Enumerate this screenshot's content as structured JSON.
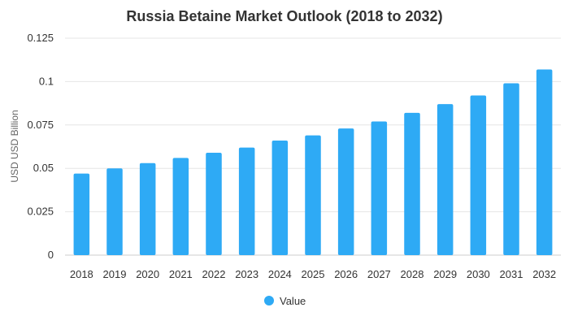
{
  "chart_data": {
    "type": "bar",
    "title": "Russia Betaine Market Outlook (2018 to 2032)",
    "xlabel": "",
    "ylabel": "USD USD Billion",
    "categories": [
      "2018",
      "2019",
      "2020",
      "2021",
      "2022",
      "2023",
      "2024",
      "2025",
      "2026",
      "2027",
      "2028",
      "2029",
      "2030",
      "2031",
      "2032"
    ],
    "series": [
      {
        "name": "Value",
        "color": "#2eaaf5",
        "values": [
          0.047,
          0.05,
          0.053,
          0.056,
          0.059,
          0.062,
          0.066,
          0.069,
          0.073,
          0.077,
          0.082,
          0.087,
          0.092,
          0.099,
          0.107
        ]
      }
    ],
    "ylim": [
      0,
      0.125
    ],
    "yticks": [
      {
        "value": 0,
        "label": "0"
      },
      {
        "value": 0.025,
        "label": "0.025"
      },
      {
        "value": 0.05,
        "label": "0.05"
      },
      {
        "value": 0.075,
        "label": "0.075"
      },
      {
        "value": 0.1,
        "label": "0.1"
      },
      {
        "value": 0.125,
        "label": "0.125"
      }
    ],
    "grid": true,
    "legend": {
      "position": "bottom-center",
      "entries": [
        "Value"
      ]
    }
  }
}
